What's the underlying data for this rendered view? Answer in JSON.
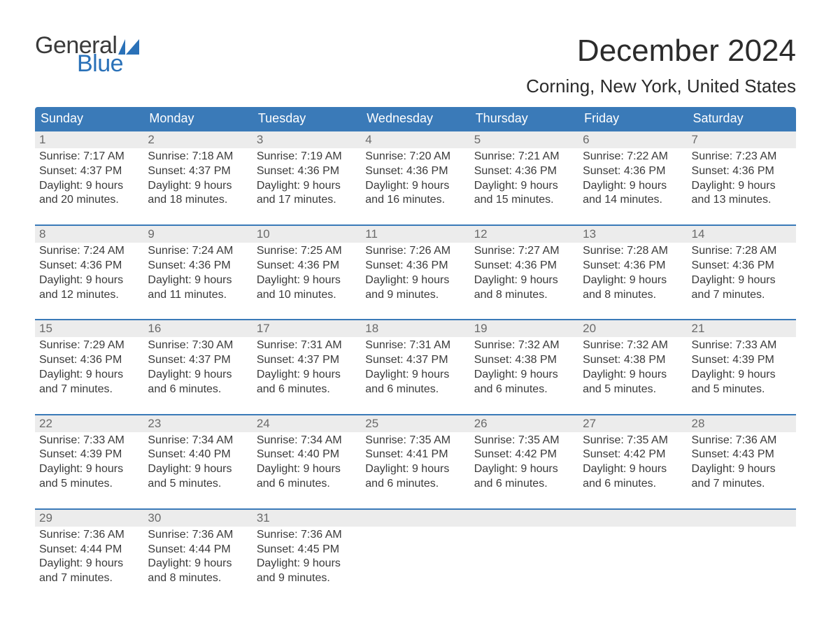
{
  "brand": {
    "word1": "General",
    "word2": "Blue",
    "word2_color": "#2a71b8",
    "mark_color": "#2a71b8"
  },
  "title": "December 2024",
  "location": "Corning, New York, United States",
  "colors": {
    "header_bg": "#3a7ab8",
    "header_text": "#ffffff",
    "week_border": "#3a7ab8",
    "daynum_bg": "#ececec",
    "body_text": "#3a3a3a",
    "daynum_text": "#6a6a6a"
  },
  "day_headers": [
    "Sunday",
    "Monday",
    "Tuesday",
    "Wednesday",
    "Thursday",
    "Friday",
    "Saturday"
  ],
  "weeks": [
    [
      {
        "n": "1",
        "sunrise": "Sunrise: 7:17 AM",
        "sunset": "Sunset: 4:37 PM",
        "day1": "Daylight: 9 hours",
        "day2": "and 20 minutes."
      },
      {
        "n": "2",
        "sunrise": "Sunrise: 7:18 AM",
        "sunset": "Sunset: 4:37 PM",
        "day1": "Daylight: 9 hours",
        "day2": "and 18 minutes."
      },
      {
        "n": "3",
        "sunrise": "Sunrise: 7:19 AM",
        "sunset": "Sunset: 4:36 PM",
        "day1": "Daylight: 9 hours",
        "day2": "and 17 minutes."
      },
      {
        "n": "4",
        "sunrise": "Sunrise: 7:20 AM",
        "sunset": "Sunset: 4:36 PM",
        "day1": "Daylight: 9 hours",
        "day2": "and 16 minutes."
      },
      {
        "n": "5",
        "sunrise": "Sunrise: 7:21 AM",
        "sunset": "Sunset: 4:36 PM",
        "day1": "Daylight: 9 hours",
        "day2": "and 15 minutes."
      },
      {
        "n": "6",
        "sunrise": "Sunrise: 7:22 AM",
        "sunset": "Sunset: 4:36 PM",
        "day1": "Daylight: 9 hours",
        "day2": "and 14 minutes."
      },
      {
        "n": "7",
        "sunrise": "Sunrise: 7:23 AM",
        "sunset": "Sunset: 4:36 PM",
        "day1": "Daylight: 9 hours",
        "day2": "and 13 minutes."
      }
    ],
    [
      {
        "n": "8",
        "sunrise": "Sunrise: 7:24 AM",
        "sunset": "Sunset: 4:36 PM",
        "day1": "Daylight: 9 hours",
        "day2": "and 12 minutes."
      },
      {
        "n": "9",
        "sunrise": "Sunrise: 7:24 AM",
        "sunset": "Sunset: 4:36 PM",
        "day1": "Daylight: 9 hours",
        "day2": "and 11 minutes."
      },
      {
        "n": "10",
        "sunrise": "Sunrise: 7:25 AM",
        "sunset": "Sunset: 4:36 PM",
        "day1": "Daylight: 9 hours",
        "day2": "and 10 minutes."
      },
      {
        "n": "11",
        "sunrise": "Sunrise: 7:26 AM",
        "sunset": "Sunset: 4:36 PM",
        "day1": "Daylight: 9 hours",
        "day2": "and 9 minutes."
      },
      {
        "n": "12",
        "sunrise": "Sunrise: 7:27 AM",
        "sunset": "Sunset: 4:36 PM",
        "day1": "Daylight: 9 hours",
        "day2": "and 8 minutes."
      },
      {
        "n": "13",
        "sunrise": "Sunrise: 7:28 AM",
        "sunset": "Sunset: 4:36 PM",
        "day1": "Daylight: 9 hours",
        "day2": "and 8 minutes."
      },
      {
        "n": "14",
        "sunrise": "Sunrise: 7:28 AM",
        "sunset": "Sunset: 4:36 PM",
        "day1": "Daylight: 9 hours",
        "day2": "and 7 minutes."
      }
    ],
    [
      {
        "n": "15",
        "sunrise": "Sunrise: 7:29 AM",
        "sunset": "Sunset: 4:36 PM",
        "day1": "Daylight: 9 hours",
        "day2": "and 7 minutes."
      },
      {
        "n": "16",
        "sunrise": "Sunrise: 7:30 AM",
        "sunset": "Sunset: 4:37 PM",
        "day1": "Daylight: 9 hours",
        "day2": "and 6 minutes."
      },
      {
        "n": "17",
        "sunrise": "Sunrise: 7:31 AM",
        "sunset": "Sunset: 4:37 PM",
        "day1": "Daylight: 9 hours",
        "day2": "and 6 minutes."
      },
      {
        "n": "18",
        "sunrise": "Sunrise: 7:31 AM",
        "sunset": "Sunset: 4:37 PM",
        "day1": "Daylight: 9 hours",
        "day2": "and 6 minutes."
      },
      {
        "n": "19",
        "sunrise": "Sunrise: 7:32 AM",
        "sunset": "Sunset: 4:38 PM",
        "day1": "Daylight: 9 hours",
        "day2": "and 6 minutes."
      },
      {
        "n": "20",
        "sunrise": "Sunrise: 7:32 AM",
        "sunset": "Sunset: 4:38 PM",
        "day1": "Daylight: 9 hours",
        "day2": "and 5 minutes."
      },
      {
        "n": "21",
        "sunrise": "Sunrise: 7:33 AM",
        "sunset": "Sunset: 4:39 PM",
        "day1": "Daylight: 9 hours",
        "day2": "and 5 minutes."
      }
    ],
    [
      {
        "n": "22",
        "sunrise": "Sunrise: 7:33 AM",
        "sunset": "Sunset: 4:39 PM",
        "day1": "Daylight: 9 hours",
        "day2": "and 5 minutes."
      },
      {
        "n": "23",
        "sunrise": "Sunrise: 7:34 AM",
        "sunset": "Sunset: 4:40 PM",
        "day1": "Daylight: 9 hours",
        "day2": "and 5 minutes."
      },
      {
        "n": "24",
        "sunrise": "Sunrise: 7:34 AM",
        "sunset": "Sunset: 4:40 PM",
        "day1": "Daylight: 9 hours",
        "day2": "and 6 minutes."
      },
      {
        "n": "25",
        "sunrise": "Sunrise: 7:35 AM",
        "sunset": "Sunset: 4:41 PM",
        "day1": "Daylight: 9 hours",
        "day2": "and 6 minutes."
      },
      {
        "n": "26",
        "sunrise": "Sunrise: 7:35 AM",
        "sunset": "Sunset: 4:42 PM",
        "day1": "Daylight: 9 hours",
        "day2": "and 6 minutes."
      },
      {
        "n": "27",
        "sunrise": "Sunrise: 7:35 AM",
        "sunset": "Sunset: 4:42 PM",
        "day1": "Daylight: 9 hours",
        "day2": "and 6 minutes."
      },
      {
        "n": "28",
        "sunrise": "Sunrise: 7:36 AM",
        "sunset": "Sunset: 4:43 PM",
        "day1": "Daylight: 9 hours",
        "day2": "and 7 minutes."
      }
    ],
    [
      {
        "n": "29",
        "sunrise": "Sunrise: 7:36 AM",
        "sunset": "Sunset: 4:44 PM",
        "day1": "Daylight: 9 hours",
        "day2": "and 7 minutes."
      },
      {
        "n": "30",
        "sunrise": "Sunrise: 7:36 AM",
        "sunset": "Sunset: 4:44 PM",
        "day1": "Daylight: 9 hours",
        "day2": "and 8 minutes."
      },
      {
        "n": "31",
        "sunrise": "Sunrise: 7:36 AM",
        "sunset": "Sunset: 4:45 PM",
        "day1": "Daylight: 9 hours",
        "day2": "and 9 minutes."
      },
      {
        "n": "",
        "sunrise": "",
        "sunset": "",
        "day1": "",
        "day2": ""
      },
      {
        "n": "",
        "sunrise": "",
        "sunset": "",
        "day1": "",
        "day2": ""
      },
      {
        "n": "",
        "sunrise": "",
        "sunset": "",
        "day1": "",
        "day2": ""
      },
      {
        "n": "",
        "sunrise": "",
        "sunset": "",
        "day1": "",
        "day2": ""
      }
    ]
  ]
}
